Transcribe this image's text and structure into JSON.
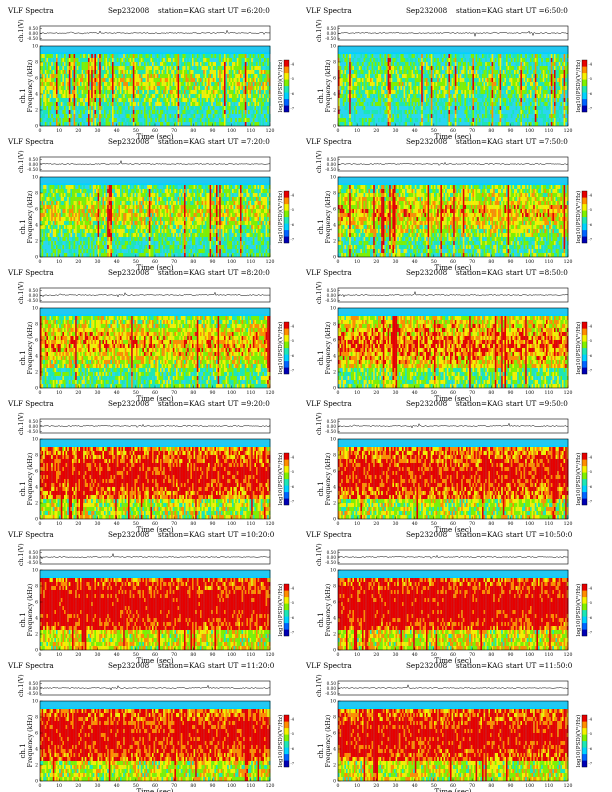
{
  "chart_data": [
    {
      "type": "heatmap",
      "title": "VLF Spectra",
      "date": "Sep232008",
      "station": "station=KAG",
      "start": "start  UT  =6:20:0",
      "amp_ylabel": "ch.1(V)",
      "amp_ticks": [
        "0.50",
        "0.00",
        "-0.50"
      ],
      "ylabel_a": "ch.1",
      "ylabel_b": "Frequency (kHz)",
      "xlabel": "Time (sec)",
      "x_ticks": [
        "0",
        "10",
        "20",
        "30",
        "40",
        "50",
        "60",
        "70",
        "80",
        "90",
        "100",
        "110",
        "120"
      ],
      "y_ticks": [
        "0",
        "2",
        "4",
        "6",
        "8",
        "10"
      ],
      "colorbar_label": "log10(PSD)(V²/Hz)",
      "colorbar_ticks": [
        "-4",
        "-5",
        "-6",
        "-7"
      ],
      "xlim": [
        0,
        120
      ],
      "ylim": [
        0,
        10
      ],
      "level": 0.25
    },
    {
      "type": "heatmap",
      "title": "VLF Spectra",
      "date": "Sep232008",
      "station": "station=KAG",
      "start": "start  UT  =6:50:0",
      "amp_ylabel": "ch.1(V)",
      "amp_ticks": [
        "0.50",
        "0.00",
        "-0.50"
      ],
      "ylabel_a": "ch.1",
      "ylabel_b": "Frequency (kHz)",
      "xlabel": "Time (sec)",
      "x_ticks": [
        "0",
        "10",
        "20",
        "30",
        "40",
        "50",
        "60",
        "70",
        "80",
        "90",
        "100",
        "110",
        "120"
      ],
      "y_ticks": [
        "0",
        "2",
        "4",
        "6",
        "8",
        "10"
      ],
      "colorbar_label": "log10(PSD)(V²/Hz)",
      "colorbar_ticks": [
        "-4",
        "-5",
        "-6",
        "-7"
      ],
      "xlim": [
        0,
        120
      ],
      "ylim": [
        0,
        10
      ],
      "level": 0.15
    },
    {
      "type": "heatmap",
      "title": "VLF Spectra",
      "date": "Sep232008",
      "station": "station=KAG",
      "start": "start  UT  =7:20:0",
      "amp_ylabel": "ch.1(V)",
      "amp_ticks": [
        "0.50",
        "0.00",
        "-0.50"
      ],
      "ylabel_a": "ch.1",
      "ylabel_b": "Frequency (kHz)",
      "xlabel": "Time (sec)",
      "x_ticks": [
        "0",
        "10",
        "20",
        "30",
        "40",
        "50",
        "60",
        "70",
        "80",
        "90",
        "100",
        "110",
        "120"
      ],
      "y_ticks": [
        "0",
        "2",
        "4",
        "6",
        "8",
        "10"
      ],
      "colorbar_label": "log10(PSD)(V²/Hz)",
      "colorbar_ticks": [
        "-4",
        "-5",
        "-6",
        "-7"
      ],
      "xlim": [
        0,
        120
      ],
      "ylim": [
        0,
        10
      ],
      "level": 0.3
    },
    {
      "type": "heatmap",
      "title": "VLF Spectra",
      "date": "Sep232008",
      "station": "station=KAG",
      "start": "start  UT  =7:50:0",
      "amp_ylabel": "ch.1(V)",
      "amp_ticks": [
        "0.50",
        "0.00",
        "-0.50"
      ],
      "ylabel_a": "ch.1",
      "ylabel_b": "Frequency (kHz)",
      "xlabel": "Time (sec)",
      "x_ticks": [
        "0",
        "10",
        "20",
        "30",
        "40",
        "50",
        "60",
        "70",
        "80",
        "90",
        "100",
        "110",
        "120"
      ],
      "y_ticks": [
        "0",
        "2",
        "4",
        "6",
        "8",
        "10"
      ],
      "colorbar_label": "log10(PSD)(V²/Hz)",
      "colorbar_ticks": [
        "-4",
        "-5",
        "-6",
        "-7"
      ],
      "xlim": [
        0,
        120
      ],
      "ylim": [
        0,
        10
      ],
      "level": 0.4
    },
    {
      "type": "heatmap",
      "title": "VLF Spectra",
      "date": "Sep232008",
      "station": "station=KAG",
      "start": "start  UT  =8:20:0",
      "amp_ylabel": "ch.1(V)",
      "amp_ticks": [
        "0.50",
        "0.00",
        "-0.50"
      ],
      "ylabel_a": "ch.1",
      "ylabel_b": "Frequency (kHz)",
      "xlabel": "Time (sec)",
      "x_ticks": [
        "0",
        "10",
        "20",
        "30",
        "40",
        "50",
        "60",
        "70",
        "80",
        "90",
        "100",
        "110",
        "120"
      ],
      "y_ticks": [
        "0",
        "2",
        "4",
        "6",
        "8",
        "10"
      ],
      "colorbar_label": "log10(PSD)(V²/Hz)",
      "colorbar_ticks": [
        "-4",
        "-5",
        "-6",
        "-7"
      ],
      "xlim": [
        0,
        120
      ],
      "ylim": [
        0,
        10
      ],
      "level": 0.45
    },
    {
      "type": "heatmap",
      "title": "VLF Spectra",
      "date": "Sep232008",
      "station": "station=KAG",
      "start": "start  UT  =8:50:0",
      "amp_ylabel": "ch.1(V)",
      "amp_ticks": [
        "0.50",
        "0.00",
        "-0.50"
      ],
      "ylabel_a": "ch.1",
      "ylabel_b": "Frequency (kHz)",
      "xlabel": "Time (sec)",
      "x_ticks": [
        "0",
        "10",
        "20",
        "30",
        "40",
        "50",
        "60",
        "70",
        "80",
        "90",
        "100",
        "110",
        "120"
      ],
      "y_ticks": [
        "0",
        "2",
        "4",
        "6",
        "8",
        "10"
      ],
      "colorbar_label": "log10(PSD)(V²/Hz)",
      "colorbar_ticks": [
        "-4",
        "-5",
        "-6",
        "-7"
      ],
      "xlim": [
        0,
        120
      ],
      "ylim": [
        0,
        10
      ],
      "level": 0.55
    },
    {
      "type": "heatmap",
      "title": "VLF Spectra",
      "date": "Sep232008",
      "station": "station=KAG",
      "start": "start  UT  =9:20:0",
      "amp_ylabel": "ch.1(V)",
      "amp_ticks": [
        "0.50",
        "0.00",
        "-0.50"
      ],
      "ylabel_a": "ch.1",
      "ylabel_b": "Frequency (kHz)",
      "xlabel": "Time (sec)",
      "x_ticks": [
        "0",
        "10",
        "20",
        "30",
        "40",
        "50",
        "60",
        "70",
        "80",
        "90",
        "100",
        "110",
        "120"
      ],
      "y_ticks": [
        "0",
        "2",
        "4",
        "6",
        "8",
        "10"
      ],
      "colorbar_label": "log10(PSD)(V²/Hz)",
      "colorbar_ticks": [
        "-4",
        "-5",
        "-6",
        "-7"
      ],
      "xlim": [
        0,
        120
      ],
      "ylim": [
        0,
        10
      ],
      "level": 0.75
    },
    {
      "type": "heatmap",
      "title": "VLF Spectra",
      "date": "Sep232008",
      "station": "station=KAG",
      "start": "start  UT  =9:50:0",
      "amp_ylabel": "ch.1(V)",
      "amp_ticks": [
        "0.50",
        "0.00",
        "-0.50"
      ],
      "ylabel_a": "ch.1",
      "ylabel_b": "Frequency (kHz)",
      "xlabel": "Time (sec)",
      "x_ticks": [
        "0",
        "10",
        "20",
        "30",
        "40",
        "50",
        "60",
        "70",
        "80",
        "90",
        "100",
        "110",
        "120"
      ],
      "y_ticks": [
        "0",
        "2",
        "4",
        "6",
        "8",
        "10"
      ],
      "colorbar_label": "log10(PSD)(V²/Hz)",
      "colorbar_ticks": [
        "-4",
        "-5",
        "-6",
        "-7"
      ],
      "xlim": [
        0,
        120
      ],
      "ylim": [
        0,
        10
      ],
      "level": 0.75
    },
    {
      "type": "heatmap",
      "title": "VLF Spectra",
      "date": "Sep232008",
      "station": "station=KAG",
      "start": "start  UT  =10:20:0",
      "amp_ylabel": "ch.1(V)",
      "amp_ticks": [
        "0.50",
        "0.00",
        "-0.50"
      ],
      "ylabel_a": "ch.1",
      "ylabel_b": "Frequency (kHz)",
      "xlabel": "Time (sec)",
      "x_ticks": [
        "0",
        "10",
        "20",
        "30",
        "40",
        "50",
        "60",
        "70",
        "80",
        "90",
        "100",
        "110",
        "120"
      ],
      "y_ticks": [
        "0",
        "2",
        "4",
        "6",
        "8",
        "10"
      ],
      "colorbar_label": "log10(PSD)(V²/Hz)",
      "colorbar_ticks": [
        "-4",
        "-5",
        "-6",
        "-7"
      ],
      "xlim": [
        0,
        120
      ],
      "ylim": [
        0,
        10
      ],
      "level": 0.85
    },
    {
      "type": "heatmap",
      "title": "VLF Spectra",
      "date": "Sep232008",
      "station": "station=KAG",
      "start": "start  UT  =10:50:0",
      "amp_ylabel": "ch.1(V)",
      "amp_ticks": [
        "0.50",
        "0.00",
        "-0.50"
      ],
      "ylabel_a": "ch.1",
      "ylabel_b": "Frequency (kHz)",
      "xlabel": "Time (sec)",
      "x_ticks": [
        "0",
        "10",
        "20",
        "30",
        "40",
        "50",
        "60",
        "70",
        "80",
        "90",
        "100",
        "110",
        "120"
      ],
      "y_ticks": [
        "0",
        "2",
        "4",
        "6",
        "8",
        "10"
      ],
      "colorbar_label": "log10(PSD)(V²/Hz)",
      "colorbar_ticks": [
        "-4",
        "-5",
        "-6",
        "-7"
      ],
      "xlim": [
        0,
        120
      ],
      "ylim": [
        0,
        10
      ],
      "level": 0.85
    },
    {
      "type": "heatmap",
      "title": "VLF Spectra",
      "date": "Sep232008",
      "station": "station=KAG",
      "start": "start  UT  =11:20:0",
      "amp_ylabel": "ch.1(V)",
      "amp_ticks": [
        "0.50",
        "0.00",
        "-0.50"
      ],
      "ylabel_a": "ch.1",
      "ylabel_b": "Frequency (kHz)",
      "xlabel": "Time (sec)",
      "x_ticks": [
        "0",
        "10",
        "20",
        "30",
        "40",
        "50",
        "60",
        "70",
        "80",
        "90",
        "100",
        "110",
        "120"
      ],
      "y_ticks": [
        "0",
        "2",
        "4",
        "6",
        "8",
        "10"
      ],
      "colorbar_label": "log10(PSD)(V²/Hz)",
      "colorbar_ticks": [
        "-4",
        "-5",
        "-6",
        "-7"
      ],
      "xlim": [
        0,
        120
      ],
      "ylim": [
        0,
        10
      ],
      "level": 0.8
    },
    {
      "type": "heatmap",
      "title": "VLF Spectra",
      "date": "Sep232008",
      "station": "station=KAG",
      "start": "start  UT  =11:50:0",
      "amp_ylabel": "ch.1(V)",
      "amp_ticks": [
        "0.50",
        "0.00",
        "-0.50"
      ],
      "ylabel_a": "ch.1",
      "ylabel_b": "Frequency (kHz)",
      "xlabel": "Time (sec)",
      "x_ticks": [
        "0",
        "10",
        "20",
        "30",
        "40",
        "50",
        "60",
        "70",
        "80",
        "90",
        "100",
        "110",
        "120"
      ],
      "y_ticks": [
        "0",
        "2",
        "4",
        "6",
        "8",
        "10"
      ],
      "colorbar_label": "log10(PSD)(V²/Hz)",
      "colorbar_ticks": [
        "-4",
        "-5",
        "-6",
        "-7"
      ],
      "xlim": [
        0,
        120
      ],
      "ylim": [
        0,
        10
      ],
      "level": 0.8
    }
  ],
  "colors": {
    "colormap": [
      "#0000b4",
      "#0064ff",
      "#00d2ff",
      "#1ee6b4",
      "#7ff000",
      "#f5f000",
      "#ff8c00",
      "#e60000"
    ],
    "spectrum_bg": "#2ad6f0",
    "top_band": "#22c8f2"
  }
}
